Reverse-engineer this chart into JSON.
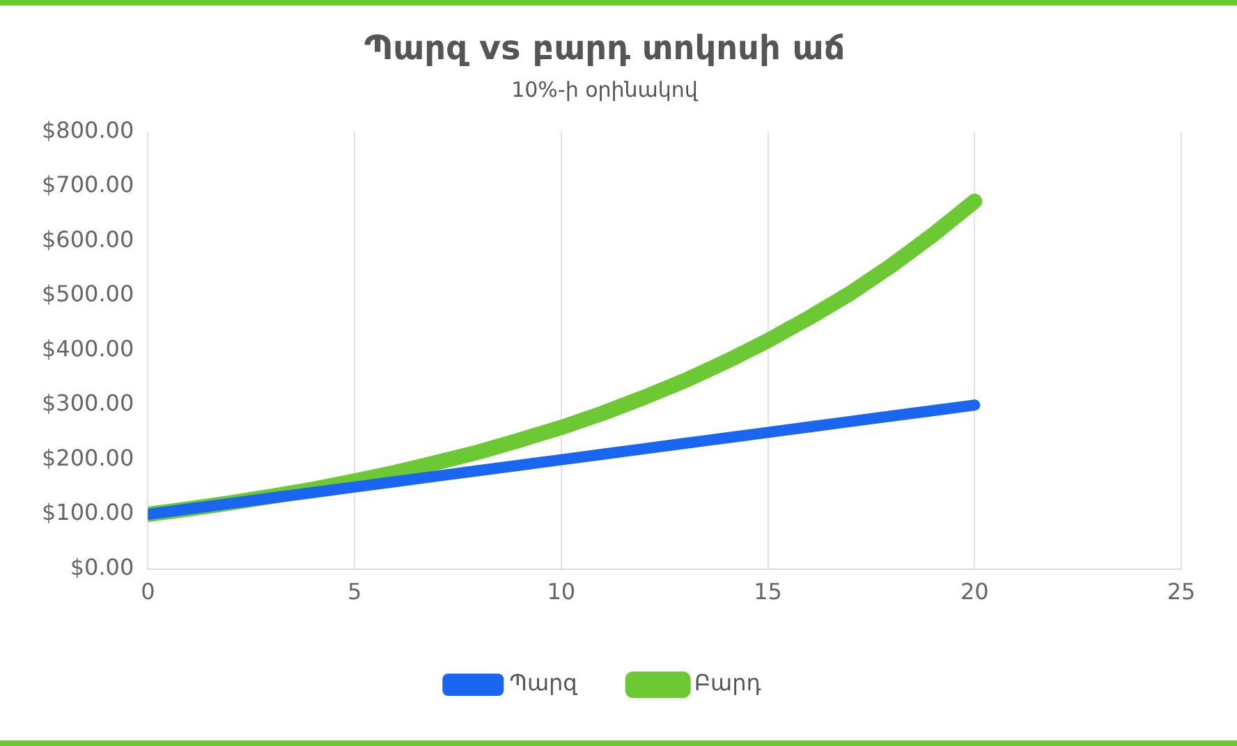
{
  "chart_data": {
    "type": "line",
    "title": "Պարզ vs բարդ տոկոսի աճ",
    "subtitle": "10%-ի օրինակով",
    "x": [
      0,
      1,
      2,
      3,
      4,
      5,
      6,
      7,
      8,
      9,
      10,
      11,
      12,
      13,
      14,
      15,
      16,
      17,
      18,
      19,
      20
    ],
    "series": [
      {
        "name": "Պարզ",
        "color": "#1a66f0",
        "values": [
          100,
          110,
          120,
          130,
          140,
          150,
          160,
          170,
          180,
          190,
          200,
          210,
          220,
          230,
          240,
          250,
          260,
          270,
          280,
          290,
          300
        ]
      },
      {
        "name": "Բարդ",
        "color": "#6cc934",
        "values": [
          100,
          110,
          121,
          133,
          146,
          161,
          177,
          195,
          214,
          236,
          259,
          285,
          314,
          345,
          380,
          418,
          460,
          505,
          556,
          612,
          673
        ]
      }
    ],
    "xlim": [
      0,
      25
    ],
    "xticks": [
      0,
      5,
      10,
      15,
      20,
      25
    ],
    "ylim": [
      0,
      800
    ],
    "yticks": [
      {
        "value": 0,
        "label": "$0.00"
      },
      {
        "value": 100,
        "label": "$100.00"
      },
      {
        "value": 200,
        "label": "$200.00"
      },
      {
        "value": 300,
        "label": "$300.00"
      },
      {
        "value": 400,
        "label": "$400.00"
      },
      {
        "value": 500,
        "label": "$500.00"
      },
      {
        "value": 600,
        "label": "$600.00"
      },
      {
        "value": 700,
        "label": "$700.00"
      },
      {
        "value": 800,
        "label": "$800.00"
      }
    ],
    "grid": "x",
    "legend": "bottom",
    "marker": "none",
    "line_style": "solid"
  }
}
